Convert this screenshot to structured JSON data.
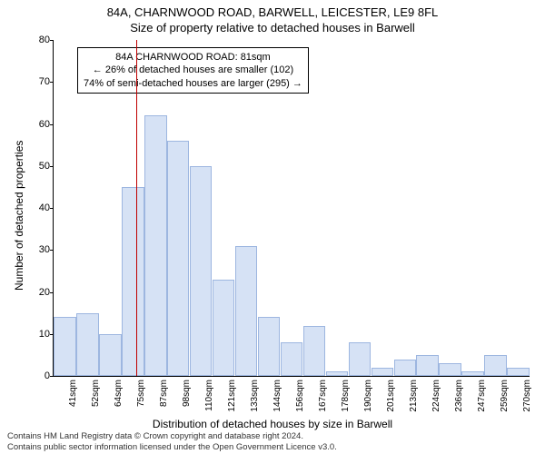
{
  "titles": {
    "line1": "84A, CHARNWOOD ROAD, BARWELL, LEICESTER, LE9 8FL",
    "line2": "Size of property relative to detached houses in Barwell"
  },
  "chart": {
    "type": "histogram",
    "ylabel": "Number of detached properties",
    "xlabel": "Distribution of detached houses by size in Barwell",
    "ylim": [
      0,
      80
    ],
    "ytick_step": 10,
    "bar_fill": "#d6e2f5",
    "bar_border": "#9db6e0",
    "background_color": "#ffffff",
    "axis_color": "#000000",
    "bar_width_ratio": 0.98,
    "categories": [
      "41sqm",
      "52sqm",
      "64sqm",
      "75sqm",
      "87sqm",
      "98sqm",
      "110sqm",
      "121sqm",
      "133sqm",
      "144sqm",
      "156sqm",
      "167sqm",
      "178sqm",
      "190sqm",
      "201sqm",
      "213sqm",
      "224sqm",
      "236sqm",
      "247sqm",
      "259sqm",
      "270sqm"
    ],
    "values": [
      14,
      15,
      10,
      45,
      62,
      56,
      50,
      23,
      31,
      14,
      8,
      12,
      1,
      8,
      2,
      4,
      5,
      3,
      1,
      5,
      2
    ],
    "marker": {
      "color": "#c00000",
      "position_ratio": 0.174
    },
    "annotation": {
      "line1": "84A CHARNWOOD ROAD: 81sqm",
      "line2": "← 26% of detached houses are smaller (102)",
      "line3": "74% of semi-detached houses are larger (295) →",
      "border_color": "#000000",
      "bg_color": "#ffffff"
    }
  },
  "footer": {
    "line1": "Contains HM Land Registry data © Crown copyright and database right 2024.",
    "line2": "Contains public sector information licensed under the Open Government Licence v3.0."
  }
}
